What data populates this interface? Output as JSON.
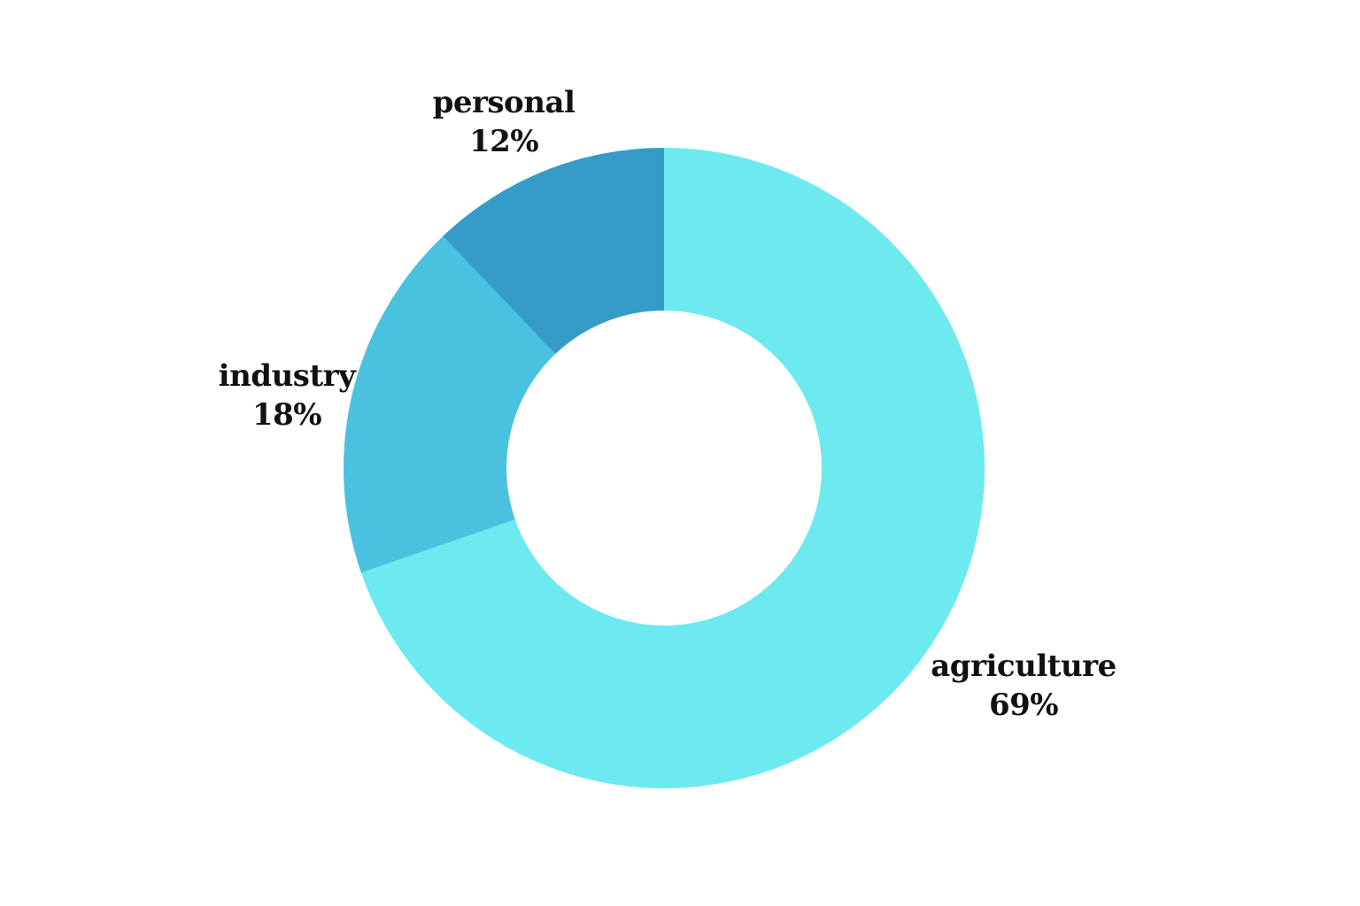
{
  "chart_data": {
    "type": "pie",
    "variant": "donut",
    "title": "",
    "slices": [
      {
        "label": "agriculture",
        "value": 69,
        "display": "69%",
        "color": "#6DEAF0"
      },
      {
        "label": "industry",
        "value": 18,
        "display": "18%",
        "color": "#4AC2DF"
      },
      {
        "label": "personal",
        "value": 12,
        "display": "12%",
        "color": "#359CC7"
      }
    ]
  }
}
